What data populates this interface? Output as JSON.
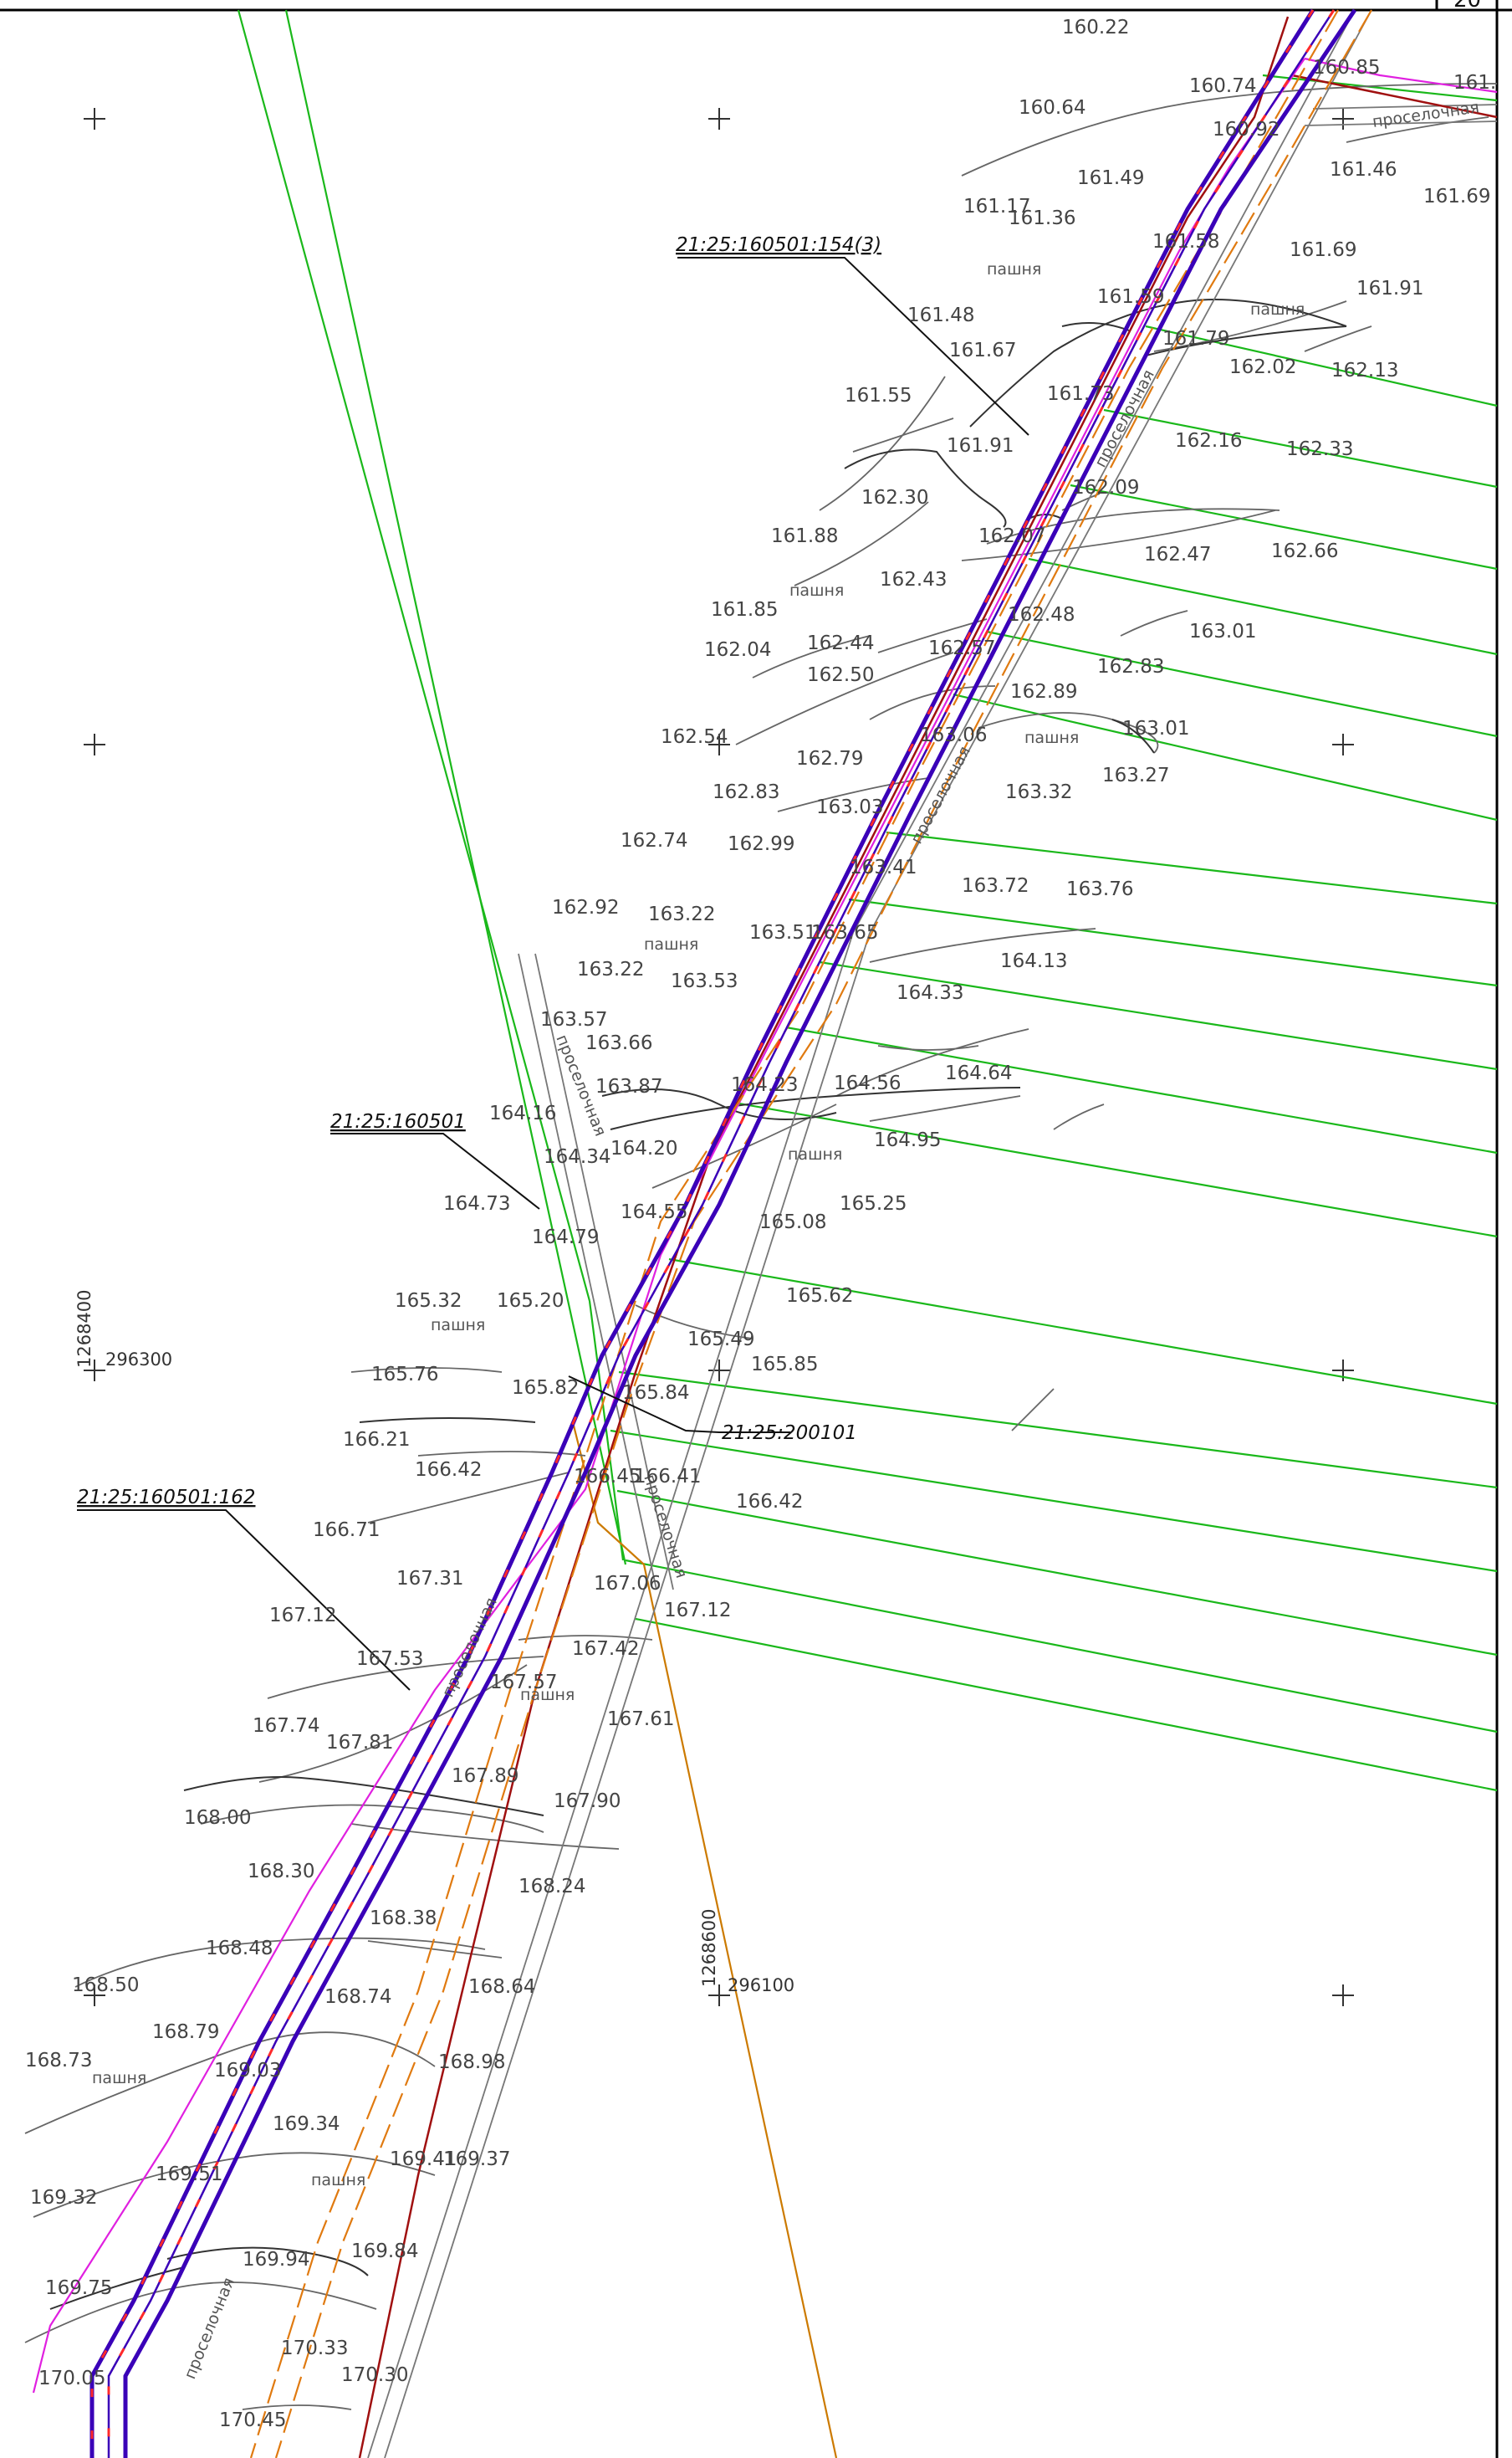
{
  "sheet_number": "20",
  "colors": {
    "route_main": "#3a00b8",
    "route_dash": "#ff2a2a",
    "offset_orange": "#e07a10",
    "boundary_red": "#a01010",
    "boundary_magenta": "#e020e0",
    "parcel_green": "#1ab81a",
    "road_gray": "#777777",
    "contour_gray": "#555555",
    "grid_orange": "#cc7a00"
  },
  "cadastral_labels": [
    {
      "id": "p154",
      "text": "21:25:160501:154(3)"
    },
    {
      "id": "p160501",
      "text": "21:25:160501"
    },
    {
      "id": "p200101",
      "text": "21:25:200101"
    },
    {
      "id": "p162",
      "text": "21:25:160501:162"
    }
  ],
  "grid_labels": {
    "y_left": "1268400",
    "x_left": "296300",
    "y_right": "1268600",
    "x_right": "296100"
  },
  "land_labels": {
    "arable": "пашня",
    "dirt_road": "проселочная",
    "dirt_road_cut": "проселочная"
  },
  "elevations": [
    "160.22",
    "160.64",
    "160.74",
    "160.85",
    "160.92",
    "161.",
    "161.46",
    "161.49",
    "161.69",
    "161.17",
    "161.36",
    "161.58",
    "161.69",
    "161.91",
    "161.59",
    "161.48",
    "161.67",
    "161.79",
    "162.02",
    "162.13",
    "161.73",
    "161.55",
    "161.91",
    "162.16",
    "162.33",
    "162.30",
    "162.09",
    "161.88",
    "162.07",
    "162.47",
    "162.66",
    "162.43",
    "161.85",
    "162.48",
    "163.01",
    "162.04",
    "162.44",
    "162.57",
    "162.83",
    "162.50",
    "162.89",
    "163.01",
    "162.54",
    "163.06",
    "163.27",
    "162.79",
    "162.83",
    "163.03",
    "163.32",
    "162.74",
    "162.99",
    "163.41",
    "163.72",
    "163.76",
    "162.92",
    "163.22",
    "163.51",
    "163.65",
    "164.13",
    "163.22",
    "163.53",
    "164.33",
    "163.57",
    "163.66",
    "164.64",
    "163.87",
    "164.23",
    "164.56",
    "164.16",
    "164.20",
    "164.95",
    "164.34",
    "164.73",
    "164.55",
    "165.25",
    "165.08",
    "164.79",
    "165.62",
    "165.32",
    "165.20",
    "165.49",
    "165.85",
    "165.76",
    "165.82",
    "165.84",
    "166.21",
    "166.42",
    "166.45",
    "166.41",
    "166.42",
    "166.71",
    "167.31",
    "167.06",
    "167.12",
    "167.12",
    "167.53",
    "167.42",
    "167.57",
    "167.74",
    "167.81",
    "167.61",
    "167.89",
    "167.90",
    "168.00",
    "168.30",
    "168.24",
    "168.38",
    "168.48",
    "168.64",
    "168.50",
    "168.74",
    "168.79",
    "168.73",
    "169.03",
    "168.98",
    "169.34",
    "169.41",
    "169.37",
    "169.32",
    "169.51",
    "169.84",
    "169.94",
    "169.75",
    "170.33",
    "170.30",
    "170.05",
    "170.45"
  ]
}
